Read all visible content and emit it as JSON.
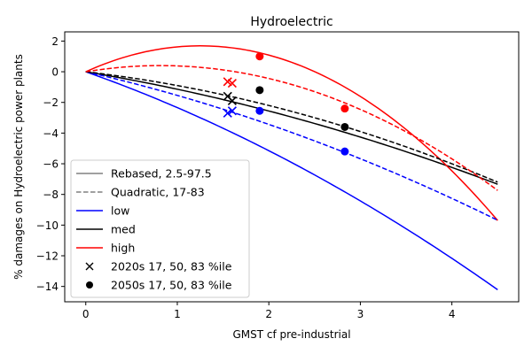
{
  "chart_data": {
    "type": "line",
    "title": "Hydroelectric",
    "xlabel": "GMST cf pre-industrial",
    "ylabel": "% damages on Hydroelectric power plants",
    "xlim": [
      -0.23,
      4.73
    ],
    "ylim": [
      -15.0,
      2.6
    ],
    "xticks": [
      0,
      1,
      2,
      3,
      4
    ],
    "yticks": [
      2,
      0,
      -2,
      -4,
      -6,
      -8,
      -10,
      -12,
      -14
    ],
    "grid": false,
    "legend_position": "lower-left",
    "colors": {
      "low": "#0000ff",
      "med": "#000000",
      "high": "#ff0000",
      "legend_style": "#808080"
    },
    "series": [
      {
        "name": "low",
        "style": "solid",
        "color": "#0000ff",
        "x_start": 0,
        "x_end": 4.5,
        "quadratic": {
          "a": -0.234,
          "b": -2.106
        }
      },
      {
        "name": "med",
        "style": "solid",
        "color": "#000000",
        "x_start": 0,
        "x_end": 4.5,
        "quadratic": {
          "a": -0.14,
          "b": -1.0
        }
      },
      {
        "name": "high",
        "style": "solid",
        "color": "#ff0000",
        "x_start": 0,
        "x_end": 4.5,
        "quadratic": {
          "a": -1.079,
          "b": 2.7
        }
      },
      {
        "name": "low",
        "style": "dashed",
        "color": "#0000ff",
        "x_start": 0,
        "x_end": 4.5,
        "quadratic": {
          "a": -0.174,
          "b": -1.369
        }
      },
      {
        "name": "med",
        "style": "dashed",
        "color": "#000000",
        "x_start": 0,
        "x_end": 4.5,
        "quadratic": {
          "a": -0.2,
          "b": -0.7
        }
      },
      {
        "name": "high",
        "style": "dashed",
        "color": "#ff0000",
        "x_start": 0,
        "x_end": 4.5,
        "quadratic": {
          "a": -0.6,
          "b": 0.98
        }
      }
    ],
    "markers": [
      {
        "group": "2020s",
        "marker": "x",
        "color": "#ff0000",
        "x": 1.55,
        "y": -0.65
      },
      {
        "group": "2020s",
        "marker": "x",
        "color": "#ff0000",
        "x": 1.6,
        "y": -0.75
      },
      {
        "group": "2020s",
        "marker": "x",
        "color": "#000000",
        "x": 1.55,
        "y": -1.6
      },
      {
        "group": "2020s",
        "marker": "x",
        "color": "#000000",
        "x": 1.6,
        "y": -1.9
      },
      {
        "group": "2020s",
        "marker": "x",
        "color": "#0000ff",
        "x": 1.55,
        "y": -2.7
      },
      {
        "group": "2020s",
        "marker": "x",
        "color": "#0000ff",
        "x": 1.6,
        "y": -2.55
      },
      {
        "group": "2050s",
        "marker": "o",
        "color": "#ff0000",
        "x": 1.9,
        "y": 1.0
      },
      {
        "group": "2050s",
        "marker": "o",
        "color": "#000000",
        "x": 1.9,
        "y": -1.2
      },
      {
        "group": "2050s",
        "marker": "o",
        "color": "#0000ff",
        "x": 1.9,
        "y": -2.55
      },
      {
        "group": "2050s",
        "marker": "o",
        "color": "#ff0000",
        "x": 2.83,
        "y": -2.4
      },
      {
        "group": "2050s",
        "marker": "o",
        "color": "#000000",
        "x": 2.83,
        "y": -3.6
      },
      {
        "group": "2050s",
        "marker": "o",
        "color": "#0000ff",
        "x": 2.83,
        "y": -5.2
      }
    ],
    "legend": [
      {
        "label": "Rebased, 2.5-97.5",
        "kind": "line",
        "style": "solid",
        "color": "#808080"
      },
      {
        "label": "Quadratic, 17-83",
        "kind": "line",
        "style": "dashed",
        "color": "#808080"
      },
      {
        "label": "low",
        "kind": "line",
        "style": "solid",
        "color": "#0000ff"
      },
      {
        "label": "med",
        "kind": "line",
        "style": "solid",
        "color": "#000000"
      },
      {
        "label": "high",
        "kind": "line",
        "style": "solid",
        "color": "#ff0000"
      },
      {
        "label": "2020s 17, 50, 83 %ile",
        "kind": "marker",
        "marker": "x",
        "color": "#000000"
      },
      {
        "label": "2050s 17, 50, 83 %ile",
        "kind": "marker",
        "marker": "o",
        "color": "#000000"
      }
    ]
  }
}
